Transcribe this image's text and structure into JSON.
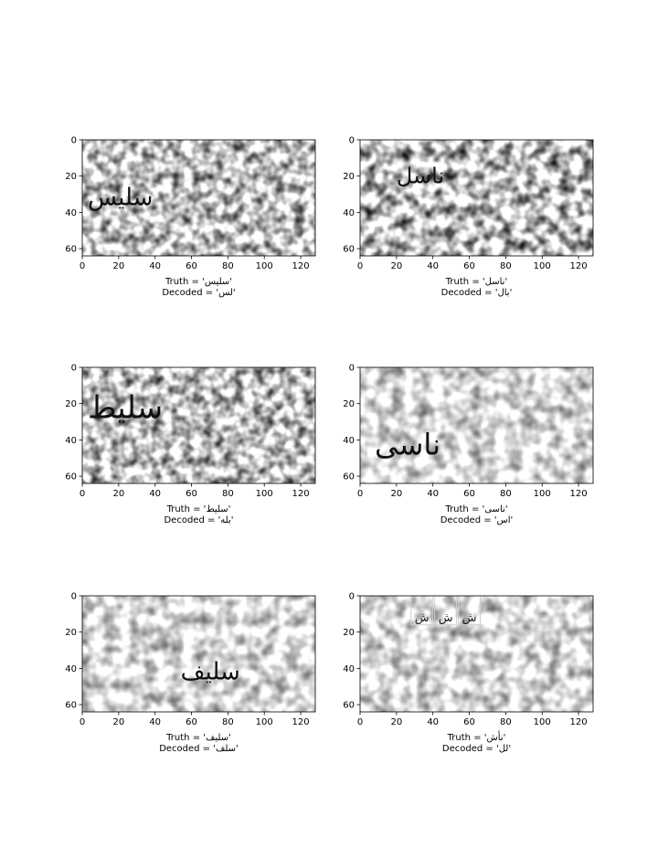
{
  "chart_data": [
    {
      "type": "image",
      "xlim": [
        0,
        128
      ],
      "ylim": [
        64,
        0
      ],
      "xticks": [
        "0",
        "20",
        "40",
        "60",
        "80",
        "100",
        "120"
      ],
      "yticks": [
        "0",
        "20",
        "40",
        "60"
      ],
      "word": "سلیس",
      "word_x": 3,
      "word_y": 36,
      "word_size": 26,
      "truth": "Truth = 'سلیس'",
      "decoded": "Decoded = 'لس'"
    },
    {
      "type": "image",
      "xlim": [
        0,
        128
      ],
      "ylim": [
        64,
        0
      ],
      "xticks": [
        "0",
        "20",
        "40",
        "60",
        "80",
        "100",
        "120"
      ],
      "yticks": [
        "0",
        "20",
        "40",
        "60"
      ],
      "word": "ناسل",
      "word_x": 20,
      "word_y": 24,
      "word_size": 24,
      "truth": "Truth = 'ناسل'",
      "decoded": "Decoded = 'بال'"
    },
    {
      "type": "image",
      "xlim": [
        0,
        128
      ],
      "ylim": [
        64,
        0
      ],
      "xticks": [
        "0",
        "20",
        "40",
        "60",
        "80",
        "100",
        "120"
      ],
      "yticks": [
        "0",
        "20",
        "40",
        "60"
      ],
      "word": "سلیط",
      "word_x": 3,
      "word_y": 28,
      "word_size": 34,
      "truth": "Truth = 'سلیط'",
      "decoded": "Decoded = 'بله'"
    },
    {
      "type": "image",
      "xlim": [
        0,
        128
      ],
      "ylim": [
        64,
        0
      ],
      "xticks": [
        "0",
        "20",
        "40",
        "60",
        "80",
        "100",
        "120"
      ],
      "yticks": [
        "0",
        "20",
        "40",
        "60"
      ],
      "word": "ناسی",
      "word_x": 8,
      "word_y": 48,
      "word_size": 32,
      "truth": "Truth = 'ناسی'",
      "decoded": "Decoded = 'اس'"
    },
    {
      "type": "image",
      "xlim": [
        0,
        128
      ],
      "ylim": [
        64,
        0
      ],
      "xticks": [
        "0",
        "20",
        "40",
        "60",
        "80",
        "100",
        "120"
      ],
      "yticks": [
        "0",
        "20",
        "40",
        "60"
      ],
      "word": "سلیف",
      "word_x": 54,
      "word_y": 46,
      "word_size": 26,
      "truth": "Truth = 'سلیف'",
      "decoded": "Decoded = 'سلف'"
    },
    {
      "type": "image",
      "xlim": [
        0,
        128
      ],
      "ylim": [
        64,
        0
      ],
      "xticks": [
        "0",
        "20",
        "40",
        "60",
        "80",
        "100",
        "120"
      ],
      "yticks": [
        "0",
        "20",
        "40",
        "60"
      ],
      "word": "ش",
      "word_x": 28,
      "word_y": 14,
      "word_size": 13,
      "boxed_glyphs": 3,
      "truth": "Truth = 'نأش'",
      "decoded": "Decoded = 'لل'"
    }
  ]
}
